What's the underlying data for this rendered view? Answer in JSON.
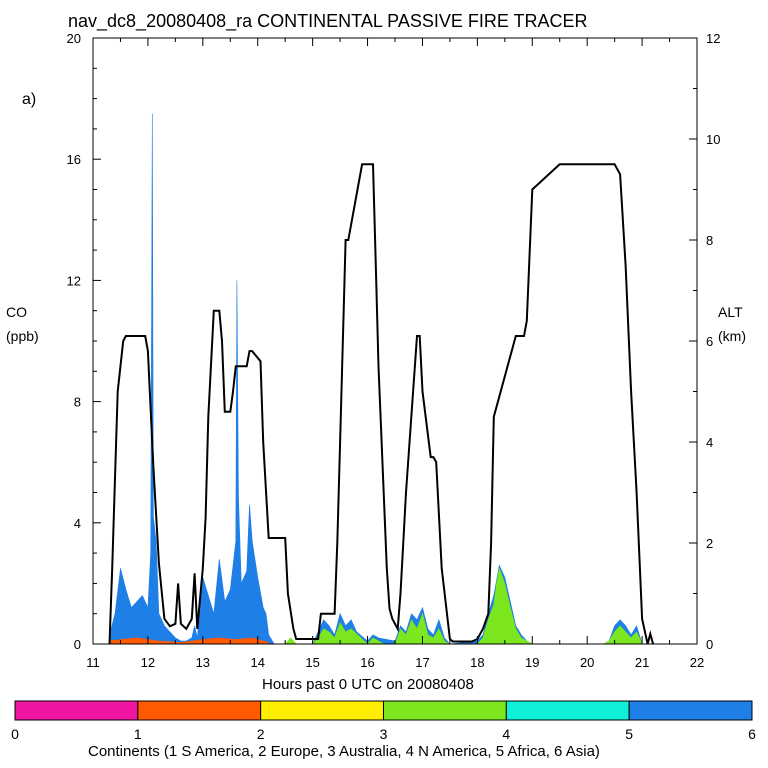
{
  "chart_data": {
    "type": "area",
    "title": "nav_dc8_20080408_ra CONTINENTAL PASSIVE FIRE TRACER",
    "panel_label": "a)",
    "xlabel": "Hours past 0 UTC on 20080408",
    "ylabel": "CO",
    "ylabel_units": "(ppb)",
    "y2label": "ALT",
    "y2label_units": "(km)",
    "xlim": [
      11,
      22
    ],
    "ylim": [
      0,
      20
    ],
    "y2lim": [
      0,
      12
    ],
    "xticks": [
      "11",
      "12",
      "13",
      "14",
      "15",
      "16",
      "17",
      "18",
      "19",
      "20",
      "21",
      "22"
    ],
    "yticks": [
      "0",
      "4",
      "8",
      "12",
      "16",
      "20"
    ],
    "y2ticks": [
      "0",
      "2",
      "4",
      "6",
      "8",
      "10",
      "12"
    ],
    "colors": {
      "asia": "#1e7fe6",
      "n_america": "#7ce61e",
      "europe": "#ff5a00",
      "altitude": "#000000"
    },
    "series": [
      {
        "name": "Asia",
        "color": "#1e7fe6",
        "x": [
          11.3,
          11.4,
          11.5,
          11.6,
          11.7,
          11.8,
          11.9,
          12.0,
          12.05,
          12.08,
          12.1,
          12.15,
          12.2,
          12.3,
          12.4,
          12.5,
          12.6,
          12.7,
          12.8,
          12.85,
          12.9,
          13.0,
          13.1,
          13.2,
          13.3,
          13.4,
          13.5,
          13.6,
          13.62,
          13.65,
          13.7,
          13.8,
          13.85,
          13.9,
          14.0,
          14.1,
          14.15,
          14.2,
          14.3,
          15.0,
          15.1,
          15.2,
          15.3,
          15.4,
          15.5,
          15.6,
          15.7,
          15.8,
          16.0,
          16.1,
          16.2,
          16.5,
          16.6,
          16.7,
          16.8,
          16.9,
          17.0,
          17.1,
          17.2,
          17.3,
          17.4,
          17.5,
          18.0,
          18.1,
          18.2,
          18.3,
          18.4,
          18.5,
          18.6,
          18.7,
          18.8,
          18.9,
          19.0,
          20.3,
          20.4,
          20.5,
          20.6,
          20.7,
          20.8,
          20.9,
          21.0
        ],
        "values": [
          0.3,
          1.0,
          2.5,
          1.8,
          1.2,
          1.4,
          1.6,
          1.2,
          3.0,
          17.5,
          4.2,
          3.4,
          1.0,
          0.6,
          0.4,
          0.2,
          0.1,
          0.1,
          0.2,
          0.6,
          0.2,
          2.2,
          1.6,
          1.0,
          2.8,
          1.4,
          1.8,
          3.4,
          12.0,
          4.8,
          2.0,
          2.4,
          4.6,
          3.4,
          2.2,
          1.2,
          1.0,
          0.3,
          0.0,
          0.0,
          0.4,
          0.8,
          0.6,
          0.3,
          1.0,
          0.6,
          0.8,
          0.4,
          0.1,
          0.3,
          0.2,
          0.1,
          0.6,
          0.4,
          1.0,
          0.8,
          1.2,
          0.5,
          0.3,
          0.8,
          0.2,
          0.0,
          0.1,
          0.3,
          1.0,
          1.6,
          2.6,
          2.2,
          1.4,
          0.6,
          0.3,
          0.1,
          0.0,
          0.0,
          0.1,
          0.6,
          0.8,
          0.6,
          0.3,
          0.6,
          0.0
        ]
      },
      {
        "name": "N America",
        "color": "#7ce61e",
        "x": [
          14.5,
          14.6,
          14.7,
          15.0,
          15.1,
          15.2,
          15.3,
          15.4,
          15.5,
          15.6,
          15.7,
          16.0,
          16.1,
          16.2,
          16.3,
          16.5,
          16.6,
          16.7,
          16.8,
          16.9,
          17.0,
          17.1,
          17.2,
          17.3,
          17.4,
          17.5,
          18.0,
          18.1,
          18.2,
          18.3,
          18.35,
          18.4,
          18.5,
          18.6,
          18.7,
          18.8,
          18.9,
          19.0,
          20.3,
          20.4,
          20.5,
          20.6,
          20.7,
          20.8,
          20.9,
          21.0
        ],
        "values": [
          0.0,
          0.2,
          0.0,
          0.0,
          0.2,
          0.5,
          0.4,
          0.2,
          0.7,
          0.4,
          0.5,
          0.0,
          0.2,
          0.1,
          0.0,
          0.0,
          0.5,
          0.3,
          0.8,
          0.5,
          1.0,
          0.3,
          0.2,
          0.5,
          0.1,
          0.0,
          0.0,
          0.2,
          0.8,
          1.3,
          2.0,
          2.5,
          2.0,
          1.2,
          0.5,
          0.2,
          0.1,
          0.0,
          0.0,
          0.1,
          0.4,
          0.6,
          0.4,
          0.2,
          0.4,
          0.0
        ]
      },
      {
        "name": "Europe",
        "color": "#ff5a00",
        "x": [
          11.3,
          11.5,
          11.8,
          12.0,
          12.2,
          12.6,
          13.0,
          13.3,
          13.6,
          13.9,
          14.2
        ],
        "values": [
          0.1,
          0.15,
          0.2,
          0.15,
          0.1,
          0.05,
          0.15,
          0.2,
          0.15,
          0.2,
          0.05
        ]
      }
    ],
    "altitude_km": {
      "name": "ALT",
      "axis": "right",
      "x": [
        11.3,
        11.35,
        11.45,
        11.55,
        11.6,
        11.7,
        11.8,
        11.95,
        12.0,
        12.1,
        12.2,
        12.3,
        12.4,
        12.5,
        12.55,
        12.6,
        12.7,
        12.8,
        12.85,
        12.9,
        13.0,
        13.05,
        13.1,
        13.2,
        13.3,
        13.35,
        13.4,
        13.5,
        13.55,
        13.6,
        13.8,
        13.85,
        13.9,
        14.05,
        14.1,
        14.2,
        14.25,
        14.5,
        14.55,
        14.65,
        14.7,
        14.8,
        14.9,
        15.1,
        15.15,
        15.2,
        15.4,
        15.45,
        15.5,
        15.6,
        15.65,
        15.9,
        15.95,
        16.1,
        16.15,
        16.2,
        16.35,
        16.4,
        16.45,
        16.55,
        16.6,
        16.7,
        16.9,
        16.95,
        17.0,
        17.15,
        17.2,
        17.25,
        17.35,
        17.5,
        17.55,
        17.9,
        18.0,
        18.1,
        18.2,
        18.25,
        18.3,
        18.7,
        18.75,
        18.85,
        18.9,
        19.0,
        19.5,
        20.0,
        20.5,
        20.6,
        20.7,
        20.8,
        20.9,
        21.0,
        21.1,
        21.15,
        21.2
      ],
      "values": [
        0.0,
        1.5,
        5.0,
        6.0,
        6.1,
        6.1,
        6.1,
        6.1,
        5.8,
        3.5,
        1.6,
        0.5,
        0.35,
        0.4,
        1.2,
        0.4,
        0.3,
        0.5,
        1.4,
        0.3,
        1.5,
        2.5,
        4.5,
        6.6,
        6.6,
        6.0,
        4.6,
        4.6,
        5.0,
        5.5,
        5.5,
        5.8,
        5.8,
        5.6,
        4.0,
        2.1,
        2.1,
        2.1,
        1.0,
        0.3,
        0.1,
        0.1,
        0.1,
        0.1,
        0.6,
        0.6,
        0.6,
        2.0,
        4.0,
        8.0,
        8.0,
        9.5,
        9.5,
        9.5,
        7.5,
        5.5,
        1.5,
        0.7,
        0.5,
        0.3,
        1.0,
        3.0,
        6.1,
        6.1,
        5.0,
        3.7,
        3.7,
        3.6,
        1.5,
        0.1,
        0.05,
        0.05,
        0.1,
        0.3,
        0.6,
        2.0,
        4.5,
        6.1,
        6.1,
        6.1,
        6.4,
        9.0,
        9.5,
        9.5,
        9.5,
        9.3,
        7.5,
        5.0,
        3.0,
        0.5,
        0.0,
        0.2,
        0.0
      ]
    },
    "legend": {
      "title": "Continents (1 S America, 2 Europe, 3 Australia, 4 N America, 5 Africa, 6 Asia)",
      "ticks": [
        "0",
        "1",
        "2",
        "3",
        "4",
        "5",
        "6"
      ],
      "colors": [
        "#f015a0",
        "#ff5a00",
        "#ffee00",
        "#7ce61e",
        "#10f0d8",
        "#1e7fe6"
      ]
    }
  }
}
